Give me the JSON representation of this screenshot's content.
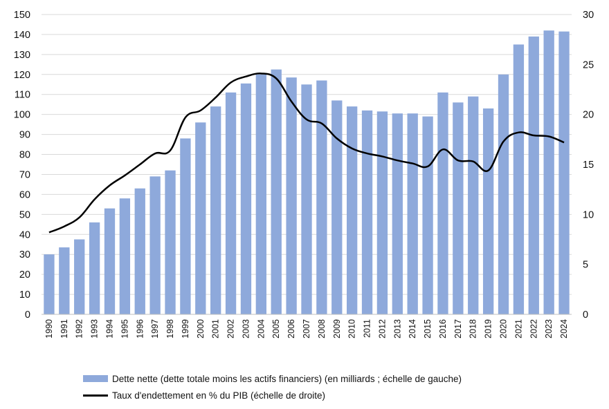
{
  "chart_data": {
    "type": "bar",
    "categories": [
      "1990",
      "1991",
      "1992",
      "1993",
      "1994",
      "1995",
      "1996",
      "1997",
      "1998",
      "1999",
      "2000",
      "2001",
      "2002",
      "2003",
      "2004",
      "2005",
      "2006",
      "2007",
      "2008",
      "2009",
      "2010",
      "2011",
      "2012",
      "2013",
      "2014",
      "2015",
      "2016",
      "2017",
      "2018",
      "2019",
      "2020",
      "2021",
      "2022",
      "2023",
      "2024"
    ],
    "series": [
      {
        "name": "Dette nette (dette totale moins les actifs financiers) (en milliards ; échelle de gauche)",
        "type": "bar",
        "axis": "left",
        "color": "#8ea9db",
        "values": [
          30,
          33.5,
          37.5,
          46,
          53,
          58,
          63,
          69,
          72,
          88,
          96,
          104,
          111,
          115.5,
          120,
          122.5,
          118.5,
          115,
          117,
          107,
          104,
          102,
          101.5,
          100.5,
          100.5,
          99,
          111,
          106,
          109,
          103,
          120,
          135,
          139,
          142,
          141.5
        ]
      },
      {
        "name": "Taux d'endettement en % du PIB  (échelle de droite)",
        "type": "line",
        "axis": "right",
        "color": "#000000",
        "values": [
          8.2,
          8.8,
          9.7,
          11.5,
          12.9,
          13.9,
          15.0,
          16.1,
          16.4,
          19.7,
          20.4,
          21.7,
          23.2,
          23.8,
          24.1,
          23.6,
          21.3,
          19.5,
          19.1,
          17.6,
          16.6,
          16.1,
          15.8,
          15.4,
          15.1,
          14.8,
          16.5,
          15.4,
          15.3,
          14.4,
          17.3,
          18.2,
          17.9,
          17.8,
          17.2
        ]
      }
    ],
    "y_left": {
      "min": 0,
      "max": 150,
      "step": 10,
      "ticks": [
        "0",
        "10",
        "20",
        "30",
        "40",
        "50",
        "60",
        "70",
        "80",
        "90",
        "100",
        "110",
        "120",
        "130",
        "140",
        "150"
      ]
    },
    "y_right": {
      "min": 0,
      "max": 30,
      "step": 5,
      "ticks": [
        "0",
        "5",
        "10",
        "15",
        "20",
        "25",
        "30"
      ]
    },
    "grid": true,
    "legend_position": "bottom",
    "title": "",
    "xlabel": "",
    "ylabel": ""
  },
  "legend": {
    "bar_label": "Dette nette (dette totale moins les actifs financiers) (en milliards ; échelle de gauche)",
    "line_label": "Taux d'endettement en % du PIB  (échelle de droite)"
  }
}
